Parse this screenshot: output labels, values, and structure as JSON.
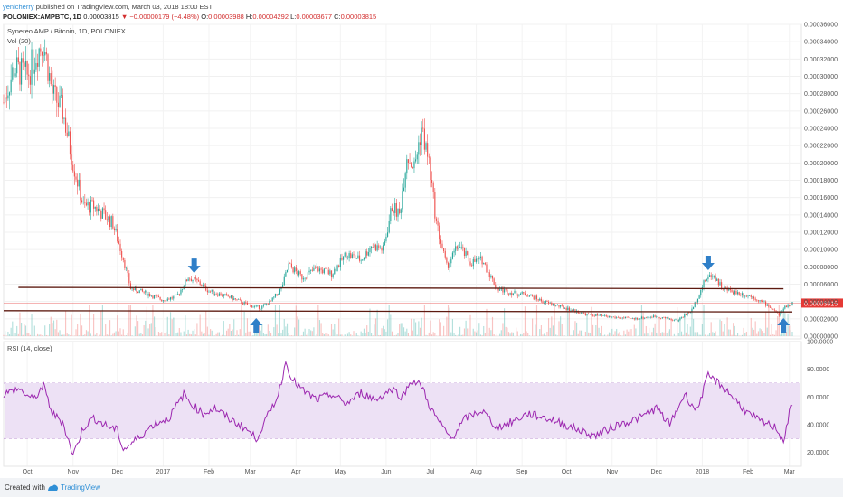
{
  "header": {
    "author": "yenicherry",
    "published_text": "published on TradingView.com, March 03, 2018 18:00 EST",
    "symbol": "POLONIEX:AMPBTC, 1D",
    "price": "0.00003815",
    "change": "▼ −0.00000179 (−4.48%)",
    "o_label": "O:",
    "o_value": "0.00003988",
    "h_label": "H:",
    "h_value": "0.00004292",
    "l_label": "L:",
    "l_value": "0.00003677",
    "c_label": "C:",
    "c_value": "0.00003815"
  },
  "price_pane": {
    "title": "Synereo AMP / Bitcoin, 1D, POLONIEX",
    "vol_label": "Vol (20)",
    "last_price_tag": "0.00003815"
  },
  "rsi_pane": {
    "title": "RSI (14, close)"
  },
  "footer": {
    "created_with": "Created with",
    "brand": "TradingView"
  },
  "colors": {
    "up": "#26a69a",
    "down": "#ef5350",
    "rsi_line": "#9c27b0",
    "rsi_band": "#ede1f5",
    "trendline": "#5d1a10",
    "arrow": "#2f7fc8",
    "last_price": "#e53935"
  },
  "chart_data": [
    {
      "type": "candlestick",
      "title": "Synereo AMP / Bitcoin, 1D, POLONIEX",
      "x_ticks": [
        "Oct",
        "Nov",
        "Dec",
        "2017",
        "Feb",
        "Mar",
        "Apr",
        "May",
        "Jun",
        "Jul",
        "Aug",
        "Sep",
        "Oct",
        "Nov",
        "Dec",
        "2018",
        "Feb",
        "Mar"
      ],
      "y_ticks": [
        "0.00036000",
        "0.00034000",
        "0.00032000",
        "0.00030000",
        "0.00028000",
        "0.00026000",
        "0.00024000",
        "0.00022000",
        "0.00020000",
        "0.00018000",
        "0.00016000",
        "0.00014000",
        "0.00012000",
        "0.00010000",
        "0.00008000",
        "0.00006000",
        "0.00004000",
        "0.00002000",
        "0.00000000"
      ],
      "ylim": [
        0,
        0.00036
      ],
      "x_range": [
        "2016-09-15",
        "2018-03-03"
      ],
      "last_price": 3.815e-05,
      "price_path": [
        [
          "2016-09-15",
          0.00027
        ],
        [
          "2016-09-22",
          0.00031
        ],
        [
          "2016-10-01",
          0.0003
        ],
        [
          "2016-10-08",
          0.00033
        ],
        [
          "2016-10-12",
          0.00034
        ],
        [
          "2016-10-18",
          0.00028
        ],
        [
          "2016-10-25",
          0.00026
        ],
        [
          "2016-11-01",
          0.0002
        ],
        [
          "2016-11-08",
          0.00015
        ],
        [
          "2016-11-15",
          0.00015
        ],
        [
          "2016-11-22",
          0.00014
        ],
        [
          "2016-11-28",
          0.00013
        ],
        [
          "2016-12-05",
          9e-05
        ],
        [
          "2016-12-10",
          5.5e-05
        ],
        [
          "2016-12-20",
          5e-05
        ],
        [
          "2016-12-31",
          4.2e-05
        ],
        [
          "2017-01-10",
          4.5e-05
        ],
        [
          "2017-01-18",
          6.8e-05
        ],
        [
          "2017-01-25",
          6.2e-05
        ],
        [
          "2017-02-01",
          5.2e-05
        ],
        [
          "2017-02-15",
          4.5e-05
        ],
        [
          "2017-03-01",
          3.5e-05
        ],
        [
          "2017-03-08",
          3.3e-05
        ],
        [
          "2017-03-15",
          4e-05
        ],
        [
          "2017-03-22",
          5.5e-05
        ],
        [
          "2017-03-27",
          8.2e-05
        ],
        [
          "2017-04-05",
          6.8e-05
        ],
        [
          "2017-04-15",
          7.8e-05
        ],
        [
          "2017-04-25",
          7.2e-05
        ],
        [
          "2017-05-05",
          9.5e-05
        ],
        [
          "2017-05-15",
          8.8e-05
        ],
        [
          "2017-05-22",
          0.000105
        ],
        [
          "2017-05-30",
          0.0001
        ],
        [
          "2017-06-05",
          0.00015
        ],
        [
          "2017-06-10",
          0.00014
        ],
        [
          "2017-06-15",
          0.00021
        ],
        [
          "2017-06-20",
          0.000195
        ],
        [
          "2017-06-25",
          0.00024
        ],
        [
          "2017-06-30",
          0.0002
        ],
        [
          "2017-07-05",
          0.00013
        ],
        [
          "2017-07-12",
          8e-05
        ],
        [
          "2017-07-20",
          0.000105
        ],
        [
          "2017-07-28",
          8.5e-05
        ],
        [
          "2017-08-05",
          8.8e-05
        ],
        [
          "2017-08-15",
          5.5e-05
        ],
        [
          "2017-08-25",
          5e-05
        ],
        [
          "2017-09-05",
          4.8e-05
        ],
        [
          "2017-09-15",
          4e-05
        ],
        [
          "2017-10-01",
          3.2e-05
        ],
        [
          "2017-10-15",
          2.5e-05
        ],
        [
          "2017-11-01",
          2.2e-05
        ],
        [
          "2017-11-15",
          2e-05
        ],
        [
          "2017-12-01",
          2.3e-05
        ],
        [
          "2017-12-15",
          1.8e-05
        ],
        [
          "2017-12-25",
          3e-05
        ],
        [
          "2018-01-03",
          6.5e-05
        ],
        [
          "2018-01-08",
          7.2e-05
        ],
        [
          "2018-01-15",
          5.5e-05
        ],
        [
          "2018-01-25",
          5e-05
        ],
        [
          "2018-02-05",
          4.5e-05
        ],
        [
          "2018-02-15",
          3.5e-05
        ],
        [
          "2018-02-22",
          2.5e-05
        ],
        [
          "2018-02-27",
          3.5e-05
        ],
        [
          "2018-03-03",
          3.8e-05
        ]
      ],
      "trendlines": [
        {
          "from": [
            "2016-09-25",
            5.63e-05
          ],
          "to": [
            "2018-02-25",
            5.47e-05
          ]
        },
        {
          "from": [
            "2016-09-15",
            2.94e-05
          ],
          "to": [
            "2018-03-03",
            2.8e-05
          ]
        }
      ],
      "arrows": [
        {
          "date": "2017-01-22",
          "direction": "down"
        },
        {
          "date": "2017-03-05",
          "direction": "up"
        },
        {
          "date": "2018-01-05",
          "direction": "down"
        },
        {
          "date": "2018-02-25",
          "direction": "up"
        }
      ]
    },
    {
      "type": "line",
      "title": "RSI (14, close)",
      "y_ticks": [
        "100.0000",
        "80.0000",
        "60.0000",
        "40.0000",
        "20.0000"
      ],
      "ylim": [
        10,
        100
      ],
      "band": [
        30,
        70
      ],
      "rsi_path": [
        [
          "2016-09-15",
          62
        ],
        [
          "2016-09-25",
          66
        ],
        [
          "2016-10-05",
          58
        ],
        [
          "2016-10-12",
          68
        ],
        [
          "2016-10-18",
          48
        ],
        [
          "2016-10-25",
          42
        ],
        [
          "2016-11-01",
          18
        ],
        [
          "2016-11-08",
          38
        ],
        [
          "2016-11-15",
          45
        ],
        [
          "2016-11-22",
          40
        ],
        [
          "2016-12-01",
          36
        ],
        [
          "2016-12-05",
          22
        ],
        [
          "2016-12-15",
          30
        ],
        [
          "2016-12-25",
          40
        ],
        [
          "2017-01-05",
          45
        ],
        [
          "2017-01-15",
          62
        ],
        [
          "2017-01-20",
          55
        ],
        [
          "2017-01-28",
          48
        ],
        [
          "2017-02-05",
          52
        ],
        [
          "2017-02-15",
          44
        ],
        [
          "2017-02-25",
          38
        ],
        [
          "2017-03-05",
          30
        ],
        [
          "2017-03-10",
          40
        ],
        [
          "2017-03-20",
          62
        ],
        [
          "2017-03-25",
          85
        ],
        [
          "2017-03-30",
          72
        ],
        [
          "2017-04-05",
          65
        ],
        [
          "2017-04-15",
          58
        ],
        [
          "2017-04-25",
          62
        ],
        [
          "2017-05-05",
          55
        ],
        [
          "2017-05-15",
          63
        ],
        [
          "2017-05-25",
          58
        ],
        [
          "2017-06-05",
          66
        ],
        [
          "2017-06-12",
          60
        ],
        [
          "2017-06-18",
          72
        ],
        [
          "2017-06-25",
          68
        ],
        [
          "2017-07-01",
          52
        ],
        [
          "2017-07-08",
          40
        ],
        [
          "2017-07-15",
          30
        ],
        [
          "2017-07-25",
          45
        ],
        [
          "2017-08-05",
          50
        ],
        [
          "2017-08-15",
          38
        ],
        [
          "2017-08-25",
          42
        ],
        [
          "2017-09-05",
          48
        ],
        [
          "2017-09-20",
          44
        ],
        [
          "2017-10-05",
          38
        ],
        [
          "2017-10-20",
          32
        ],
        [
          "2017-11-05",
          40
        ],
        [
          "2017-11-20",
          45
        ],
        [
          "2017-12-01",
          52
        ],
        [
          "2017-12-10",
          40
        ],
        [
          "2017-12-20",
          62
        ],
        [
          "2017-12-28",
          50
        ],
        [
          "2018-01-05",
          75
        ],
        [
          "2018-01-12",
          70
        ],
        [
          "2018-01-20",
          62
        ],
        [
          "2018-02-01",
          48
        ],
        [
          "2018-02-10",
          42
        ],
        [
          "2018-02-20",
          38
        ],
        [
          "2018-02-25",
          28
        ],
        [
          "2018-03-01",
          48
        ],
        [
          "2018-03-03",
          55
        ]
      ]
    }
  ]
}
